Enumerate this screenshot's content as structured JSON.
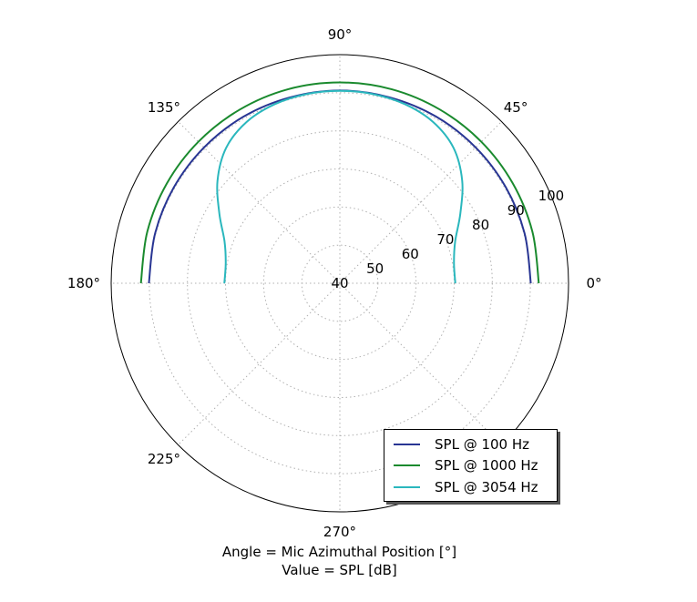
{
  "chart_data": {
    "type": "polar-line",
    "angle_unit": "degrees",
    "angle_ticks": [
      "0°",
      "45°",
      "90°",
      "135°",
      "180°",
      "225°",
      "270°"
    ],
    "radial_ticks": [
      "40",
      "50",
      "60",
      "70",
      "80",
      "90",
      "100"
    ],
    "radial_range": [
      40,
      100
    ],
    "grid": true,
    "legend_position": "lower-right",
    "caption": [
      "Angle = Mic Azimuthal Position [°]",
      "Value = SPL [dB]"
    ],
    "series": [
      {
        "name": "SPL @ 100 Hz",
        "color": "#283593",
        "theta": [
          0,
          15,
          30,
          45,
          60,
          75,
          90,
          105,
          120,
          135,
          150,
          165,
          180
        ],
        "r": [
          90.1,
          90.2,
          90.3,
          90.4,
          90.5,
          90.5,
          90.6,
          90.5,
          90.5,
          90.4,
          90.3,
          90.2,
          90.1
        ]
      },
      {
        "name": "SPL @ 1000 Hz",
        "color": "#1a8a2e",
        "theta": [
          0,
          15,
          30,
          45,
          60,
          75,
          90,
          105,
          120,
          135,
          150,
          165,
          180
        ],
        "r": [
          92.2,
          92.3,
          92.4,
          92.5,
          92.6,
          92.7,
          92.7,
          92.7,
          92.6,
          92.5,
          92.4,
          92.3,
          92.2
        ]
      },
      {
        "name": "SPL @ 3054 Hz",
        "color": "#2ab7bd",
        "theta": [
          0,
          10,
          20,
          30,
          40,
          50,
          60,
          70,
          80,
          90,
          100,
          110,
          120,
          130,
          140,
          150,
          160,
          170,
          180
        ],
        "r": [
          70.3,
          70.4,
          72.2,
          76.5,
          81.9,
          86.4,
          88.9,
          90.0,
          90.4,
          90.5,
          90.4,
          90.0,
          88.9,
          86.4,
          81.9,
          76.5,
          72.2,
          70.4,
          70.3
        ]
      }
    ]
  }
}
